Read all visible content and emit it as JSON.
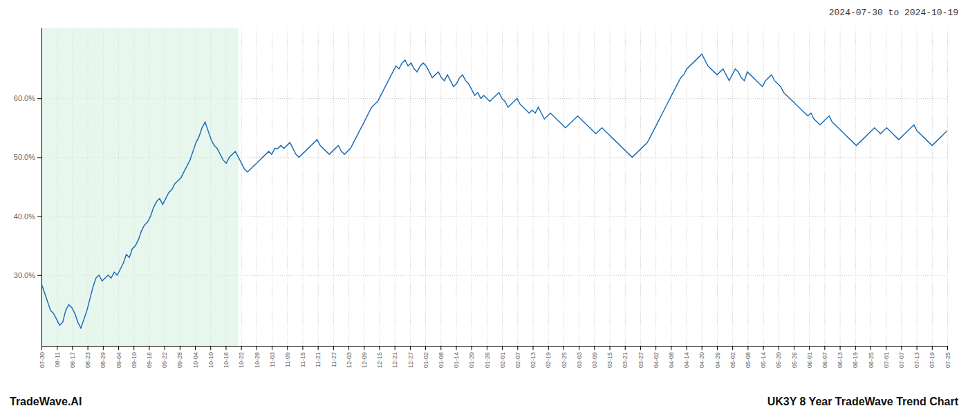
{
  "chart_data": {
    "type": "line",
    "title": "UK3Y 8 Year TradeWave Trend Chart",
    "subtitle": "2024-07-30 to 2024-10-19",
    "annotations": [
      "TradeWave.AI"
    ],
    "color": "#1f6eb5",
    "grid": true,
    "shade": {
      "x": [
        0,
        65
      ],
      "color": "#d6f0e0"
    },
    "xlim": [
      0,
      299
    ],
    "xticks": [
      {
        "value": 0,
        "label": "07-30"
      },
      {
        "value": 5.068,
        "label": "08-11"
      },
      {
        "value": 10.136,
        "label": "08-17"
      },
      {
        "value": 15.203,
        "label": "08-23"
      },
      {
        "value": 20.271,
        "label": "08-29"
      },
      {
        "value": 25.339,
        "label": "09-04"
      },
      {
        "value": 30.407,
        "label": "09-10"
      },
      {
        "value": 35.475,
        "label": "09-16"
      },
      {
        "value": 40.542,
        "label": "09-22"
      },
      {
        "value": 45.61,
        "label": "09-28"
      },
      {
        "value": 50.678,
        "label": "10-04"
      },
      {
        "value": 55.746,
        "label": "10-10"
      },
      {
        "value": 60.814,
        "label": "10-16"
      },
      {
        "value": 65.881,
        "label": "10-22"
      },
      {
        "value": 70.949,
        "label": "10-28"
      },
      {
        "value": 76.017,
        "label": "11-03"
      },
      {
        "value": 81.085,
        "label": "11-09"
      },
      {
        "value": 86.153,
        "label": "11-15"
      },
      {
        "value": 91.22,
        "label": "11-21"
      },
      {
        "value": 96.288,
        "label": "11-27"
      },
      {
        "value": 101.356,
        "label": "12-03"
      },
      {
        "value": 106.424,
        "label": "12-09"
      },
      {
        "value": 111.492,
        "label": "12-15"
      },
      {
        "value": 116.559,
        "label": "12-21"
      },
      {
        "value": 121.627,
        "label": "12-27"
      },
      {
        "value": 126.695,
        "label": "01-02"
      },
      {
        "value": 131.763,
        "label": "01-08"
      },
      {
        "value": 136.831,
        "label": "01-14"
      },
      {
        "value": 141.898,
        "label": "01-20"
      },
      {
        "value": 146.966,
        "label": "01-26"
      },
      {
        "value": 152.034,
        "label": "02-01"
      },
      {
        "value": 157.102,
        "label": "02-07"
      },
      {
        "value": 162.169,
        "label": "02-13"
      },
      {
        "value": 167.237,
        "label": "02-19"
      },
      {
        "value": 172.305,
        "label": "02-25"
      },
      {
        "value": 177.373,
        "label": "03-03"
      },
      {
        "value": 182.441,
        "label": "03-09"
      },
      {
        "value": 187.508,
        "label": "03-15"
      },
      {
        "value": 192.576,
        "label": "03-21"
      },
      {
        "value": 197.644,
        "label": "03-27"
      },
      {
        "value": 202.712,
        "label": "04-02"
      },
      {
        "value": 207.78,
        "label": "04-08"
      },
      {
        "value": 212.847,
        "label": "04-14"
      },
      {
        "value": 217.915,
        "label": "04-20"
      },
      {
        "value": 222.983,
        "label": "04-26"
      },
      {
        "value": 228.051,
        "label": "05-02"
      },
      {
        "value": 233.119,
        "label": "05-08"
      },
      {
        "value": 238.186,
        "label": "05-14"
      },
      {
        "value": 243.254,
        "label": "05-20"
      },
      {
        "value": 248.322,
        "label": "05-26"
      },
      {
        "value": 253.39,
        "label": "06-01"
      },
      {
        "value": 258.458,
        "label": "06-07"
      },
      {
        "value": 263.525,
        "label": "06-13"
      },
      {
        "value": 268.593,
        "label": "06-19"
      },
      {
        "value": 273.661,
        "label": "06-25"
      },
      {
        "value": 278.729,
        "label": "07-01"
      },
      {
        "value": 283.797,
        "label": "07-07"
      },
      {
        "value": 288.864,
        "label": "07-13"
      },
      {
        "value": 293.932,
        "label": "07-19"
      },
      {
        "value": 299,
        "label": "07-25"
      }
    ],
    "ylim": [
      18.0,
      72.0
    ],
    "yticks": [
      {
        "value": 30.0,
        "label": "30.0%"
      },
      {
        "value": 40.0,
        "label": "40.0%"
      },
      {
        "value": 50.0,
        "label": "50.0%"
      },
      {
        "value": 60.0,
        "label": "60.0%"
      }
    ],
    "x": [
      0,
      1,
      2,
      3,
      4,
      5,
      6,
      7,
      8,
      9,
      10,
      11,
      12,
      13,
      14,
      15,
      16,
      17,
      18,
      19,
      20,
      21,
      22,
      23,
      24,
      25,
      26,
      27,
      28,
      29,
      30,
      31,
      32,
      33,
      34,
      35,
      36,
      37,
      38,
      39,
      40,
      41,
      42,
      43,
      44,
      45,
      46,
      47,
      48,
      49,
      50,
      51,
      52,
      53,
      54,
      55,
      56,
      57,
      58,
      59,
      60,
      61,
      62,
      63,
      64,
      65,
      66,
      67,
      68,
      69,
      70,
      71,
      72,
      73,
      74,
      75,
      76,
      77,
      78,
      79,
      80,
      81,
      82,
      83,
      84,
      85,
      86,
      87,
      88,
      89,
      90,
      91,
      92,
      93,
      94,
      95,
      96,
      97,
      98,
      99,
      100,
      101,
      102,
      103,
      104,
      105,
      106,
      107,
      108,
      109,
      110,
      111,
      112,
      113,
      114,
      115,
      116,
      117,
      118,
      119,
      120,
      121,
      122,
      123,
      124,
      125,
      126,
      127,
      128,
      129,
      130,
      131,
      132,
      133,
      134,
      135,
      136,
      137,
      138,
      139,
      140,
      141,
      142,
      143,
      144,
      145,
      146,
      147,
      148,
      149,
      150,
      151,
      152,
      153,
      154,
      155,
      156,
      157,
      158,
      159,
      160,
      161,
      162,
      163,
      164,
      165,
      166,
      167,
      168,
      169,
      170,
      171,
      172,
      173,
      174,
      175,
      176,
      177,
      178,
      179,
      180,
      181,
      182,
      183,
      184,
      185,
      186,
      187,
      188,
      189,
      190,
      191,
      192,
      193,
      194,
      195,
      196,
      197,
      198,
      199,
      200,
      201,
      202,
      203,
      204,
      205,
      206,
      207,
      208,
      209,
      210,
      211,
      212,
      213,
      214,
      215,
      216,
      217,
      218,
      219,
      220,
      221,
      222,
      223,
      224,
      225,
      226,
      227,
      228,
      229,
      230,
      231,
      232,
      233,
      234,
      235,
      236,
      237,
      238,
      239,
      240,
      241,
      242,
      243,
      244,
      245,
      246,
      247,
      248,
      249,
      250,
      251,
      252,
      253,
      254,
      255,
      256,
      257,
      258,
      259,
      260,
      261,
      262,
      263,
      264,
      265,
      266,
      267,
      268,
      269,
      270,
      271,
      272,
      273,
      274,
      275,
      276,
      277,
      278,
      279,
      280,
      281,
      282,
      283,
      284,
      285,
      286,
      287,
      288,
      289,
      290,
      291,
      292,
      293,
      294,
      295,
      296,
      297,
      298,
      299
    ],
    "values": [
      28.5,
      27.0,
      25.5,
      24.0,
      23.5,
      22.5,
      21.5,
      22.0,
      24.0,
      25.0,
      24.5,
      23.5,
      22.0,
      21.0,
      22.5,
      24.0,
      26.0,
      28.0,
      29.5,
      30.0,
      29.0,
      29.5,
      30.0,
      29.5,
      30.5,
      30.0,
      31.0,
      32.0,
      33.5,
      33.0,
      34.5,
      35.0,
      36.0,
      37.5,
      38.5,
      39.0,
      40.0,
      41.5,
      42.5,
      43.0,
      42.0,
      43.0,
      44.0,
      44.5,
      45.5,
      46.0,
      46.5,
      47.5,
      48.5,
      49.5,
      51.0,
      52.5,
      53.5,
      55.0,
      56.0,
      54.5,
      53.0,
      52.0,
      51.5,
      50.5,
      49.5,
      49.0,
      50.0,
      50.5,
      51.0,
      50.0,
      49.0,
      48.0,
      47.5,
      48.0,
      48.5,
      49.0,
      49.5,
      50.0,
      50.5,
      51.0,
      50.5,
      51.5,
      51.5,
      52.0,
      51.5,
      52.0,
      52.5,
      51.5,
      50.5,
      50.0,
      50.5,
      51.0,
      51.5,
      52.0,
      52.5,
      53.0,
      52.0,
      51.5,
      51.0,
      50.5,
      51.0,
      51.5,
      52.0,
      51.0,
      50.5,
      51.0,
      51.5,
      52.5,
      53.5,
      54.5,
      55.5,
      56.5,
      57.5,
      58.5,
      59.0,
      59.5,
      60.5,
      61.5,
      62.5,
      63.5,
      64.5,
      65.5,
      65.0,
      66.0,
      66.5,
      65.5,
      66.0,
      65.0,
      64.5,
      65.5,
      66.0,
      65.5,
      64.5,
      63.5,
      64.0,
      64.5,
      63.5,
      63.0,
      64.0,
      63.0,
      62.0,
      62.5,
      63.5,
      64.0,
      63.0,
      62.5,
      61.5,
      60.5,
      61.0,
      60.0,
      60.5,
      60.0,
      59.5,
      60.0,
      60.5,
      61.0,
      60.0,
      59.5,
      58.5,
      59.0,
      59.5,
      60.0,
      59.0,
      58.5,
      58.0,
      57.5,
      58.0,
      57.5,
      58.5,
      57.5,
      56.5,
      57.0,
      57.5,
      57.0,
      56.5,
      56.0,
      55.5,
      55.0,
      55.5,
      56.0,
      56.5,
      57.0,
      56.5,
      56.0,
      55.5,
      55.0,
      54.5,
      54.0,
      54.5,
      55.0,
      54.5,
      54.0,
      53.5,
      53.0,
      52.5,
      52.0,
      51.5,
      51.0,
      50.5,
      50.0,
      50.5,
      51.0,
      51.5,
      52.0,
      52.5,
      53.5,
      54.5,
      55.5,
      56.5,
      57.5,
      58.5,
      59.5,
      60.5,
      61.5,
      62.5,
      63.5,
      64.0,
      65.0,
      65.5,
      66.0,
      66.5,
      67.0,
      67.5,
      66.5,
      65.5,
      65.0,
      64.5,
      64.0,
      64.5,
      65.0,
      64.0,
      63.0,
      64.0,
      65.0,
      64.5,
      63.5,
      63.0,
      64.5,
      64.0,
      63.5,
      63.0,
      62.5,
      62.0,
      63.0,
      63.5,
      64.0,
      63.0,
      62.5,
      62.0,
      61.0,
      60.5,
      60.0,
      59.5,
      59.0,
      58.5,
      58.0,
      57.5,
      57.0,
      57.5,
      56.5,
      56.0,
      55.5,
      56.0,
      56.5,
      57.0,
      56.0,
      55.5,
      55.0,
      54.5,
      54.0,
      53.5,
      53.0,
      52.5,
      52.0,
      52.5,
      53.0,
      53.5,
      54.0,
      54.5,
      55.0,
      54.5,
      54.0,
      54.5,
      55.0,
      54.5,
      54.0,
      53.5,
      53.0,
      53.5,
      54.0,
      54.5,
      55.0,
      55.5,
      54.5,
      54.0,
      53.5,
      53.0,
      52.5,
      52.0,
      52.5,
      53.0,
      53.5,
      54.0,
      54.5
    ]
  }
}
